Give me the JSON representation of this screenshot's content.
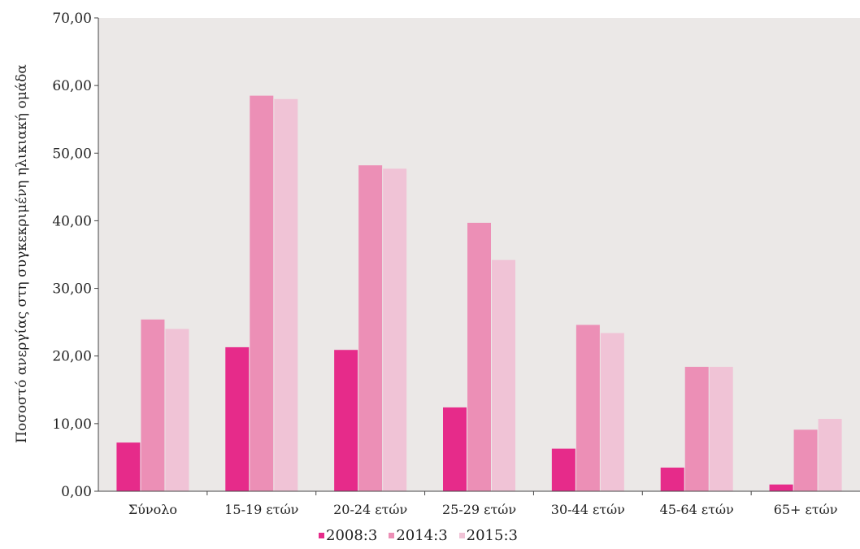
{
  "chart_data": {
    "type": "bar",
    "title": "",
    "xlabel": "",
    "ylabel": "Ποσοστό ανεργίας στη συγκεκριμένη ηλικιακή ομάδα",
    "ylim": [
      0,
      70
    ],
    "yticks": [
      "0,00",
      "10,00",
      "20,00",
      "30,00",
      "40,00",
      "50,00",
      "60,00",
      "70,00"
    ],
    "grid": false,
    "legend_position": "bottom",
    "background": "#ebe8e7",
    "categories": [
      "Σύνολο",
      "15-19 ετών",
      "20-24 ετών",
      "25-29 ετών",
      "30-44 ετών",
      "45-64 ετών",
      "65+ ετών"
    ],
    "series": [
      {
        "name": "2008:3",
        "color": "#e62b8a",
        "values": [
          7.2,
          21.3,
          20.9,
          12.4,
          6.3,
          3.5,
          1.0
        ]
      },
      {
        "name": "2014:3",
        "color": "#ec8fb6",
        "values": [
          25.4,
          58.5,
          48.2,
          39.7,
          24.6,
          18.4,
          9.1
        ]
      },
      {
        "name": "2015:3",
        "color": "#f0c3d6",
        "values": [
          24.0,
          58.0,
          47.7,
          34.2,
          23.4,
          18.4,
          10.7
        ]
      }
    ]
  }
}
